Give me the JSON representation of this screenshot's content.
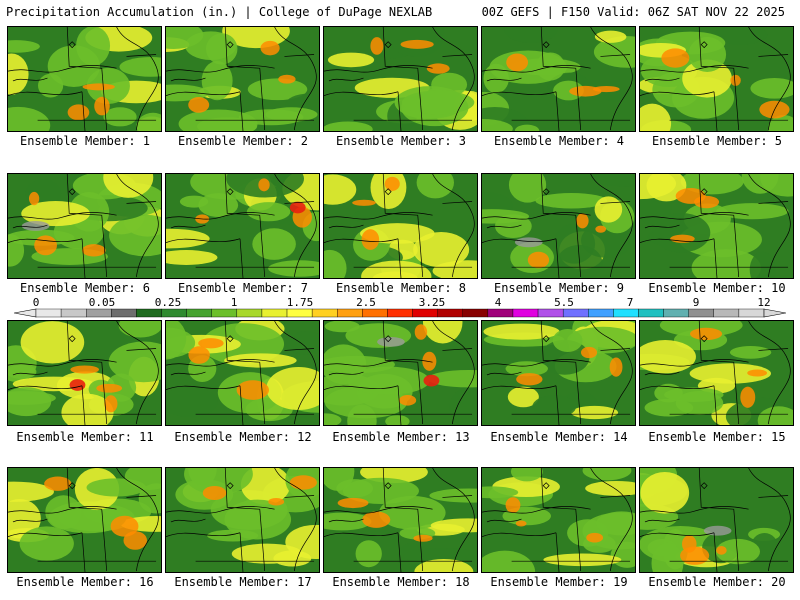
{
  "header": {
    "title": "Precipitation Accumulation (in.) | College of DuPage NEXLAB",
    "model_info": "00Z GEFS | F150 Valid: 06Z SAT NOV 22 2025"
  },
  "members": [
    "Ensemble Member: 1",
    "Ensemble Member: 2",
    "Ensemble Member: 3",
    "Ensemble Member: 4",
    "Ensemble Member: 5",
    "Ensemble Member: 6",
    "Ensemble Member: 7",
    "Ensemble Member: 8",
    "Ensemble Member: 9",
    "Ensemble Member: 10",
    "Ensemble Member: 11",
    "Ensemble Member: 12",
    "Ensemble Member: 13",
    "Ensemble Member: 14",
    "Ensemble Member: 15",
    "Ensemble Member: 16",
    "Ensemble Member: 17",
    "Ensemble Member: 18",
    "Ensemble Member: 19",
    "Ensemble Member: 20"
  ],
  "colorbar": {
    "tick_labels": [
      "0",
      "0.05",
      "0.25",
      "1",
      "1.75",
      "2.5",
      "3.25",
      "4",
      "5.5",
      "7",
      "9",
      "12"
    ],
    "colors": [
      "#e8e8e8",
      "#c8c8c8",
      "#a0a0a0",
      "#6e6e6e",
      "#1f6b1f",
      "#2f8a2f",
      "#46a32f",
      "#6cbf2a",
      "#a8d82a",
      "#e8f030",
      "#ffff40",
      "#ffd020",
      "#ffa010",
      "#ff7000",
      "#ff3000",
      "#e00000",
      "#b00000",
      "#880000",
      "#a0007a",
      "#e000e0",
      "#b050e8",
      "#7070ff",
      "#40a0ff",
      "#20e0ff",
      "#20c0c0",
      "#60b0b0",
      "#909090",
      "#b8b8b8",
      "#d8d8d8"
    ]
  },
  "palette": {
    "low": "#2f7d22",
    "mid": "#6cbf2a",
    "high": "#e8f030",
    "heavy": "#ff8c00",
    "extreme": "#e82010",
    "gray": "#9a9a9a"
  }
}
